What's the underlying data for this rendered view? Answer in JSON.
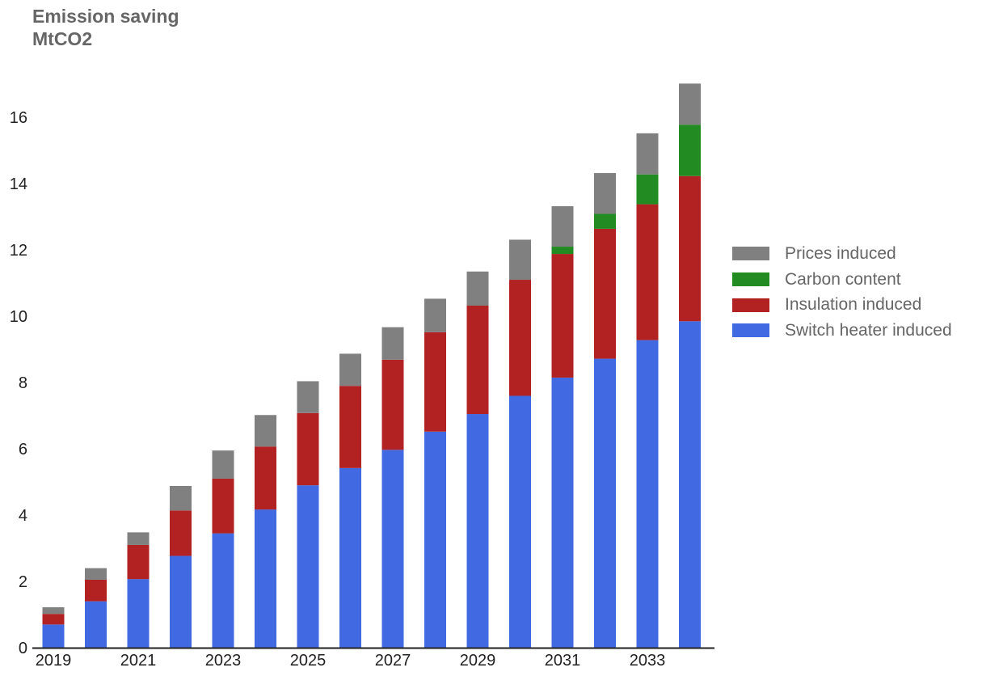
{
  "title_lines": [
    "Emission saving",
    "MtCO2"
  ],
  "chart_data": {
    "type": "bar",
    "stacked": true,
    "title": "Emission saving",
    "ylabel": "MtCO2",
    "xlabel": "",
    "categories": [
      "2019",
      "2020",
      "2021",
      "2022",
      "2023",
      "2024",
      "2025",
      "2026",
      "2027",
      "2028",
      "2029",
      "2030",
      "2031",
      "2032",
      "2033",
      "2034"
    ],
    "x_tick_labels": [
      "2019",
      "2021",
      "2023",
      "2025",
      "2027",
      "2029",
      "2031",
      "2033"
    ],
    "y_ticks": [
      "0",
      "2",
      "4",
      "6",
      "8",
      "10",
      "12",
      "14",
      "16"
    ],
    "ylim": [
      0,
      17.2
    ],
    "grid": false,
    "legend_position": "right",
    "series": [
      {
        "name": "Switch heater induced",
        "color": "#4169E1",
        "values": [
          0.7,
          1.4,
          2.07,
          2.77,
          3.45,
          4.17,
          4.9,
          5.42,
          5.97,
          6.52,
          7.05,
          7.6,
          8.15,
          8.72,
          9.28,
          9.85
        ]
      },
      {
        "name": "Insulation induced",
        "color": "#B22222",
        "values": [
          0.32,
          0.65,
          1.03,
          1.37,
          1.65,
          1.9,
          2.18,
          2.48,
          2.72,
          3.0,
          3.27,
          3.5,
          3.73,
          3.92,
          4.1,
          4.38
        ]
      },
      {
        "name": "Carbon content",
        "color": "#228B22",
        "values": [
          0,
          0,
          0,
          0,
          0,
          0,
          0,
          0,
          0,
          0,
          0,
          0,
          0.22,
          0.45,
          0.9,
          1.55
        ]
      },
      {
        "name": "Prices induced",
        "color": "#808080",
        "values": [
          0.2,
          0.35,
          0.38,
          0.74,
          0.85,
          0.95,
          0.96,
          0.97,
          0.98,
          1.01,
          1.03,
          1.21,
          1.22,
          1.23,
          1.24,
          1.24
        ]
      }
    ],
    "legend_order": [
      "Prices induced",
      "Carbon content",
      "Insulation induced",
      "Switch heater induced"
    ]
  }
}
